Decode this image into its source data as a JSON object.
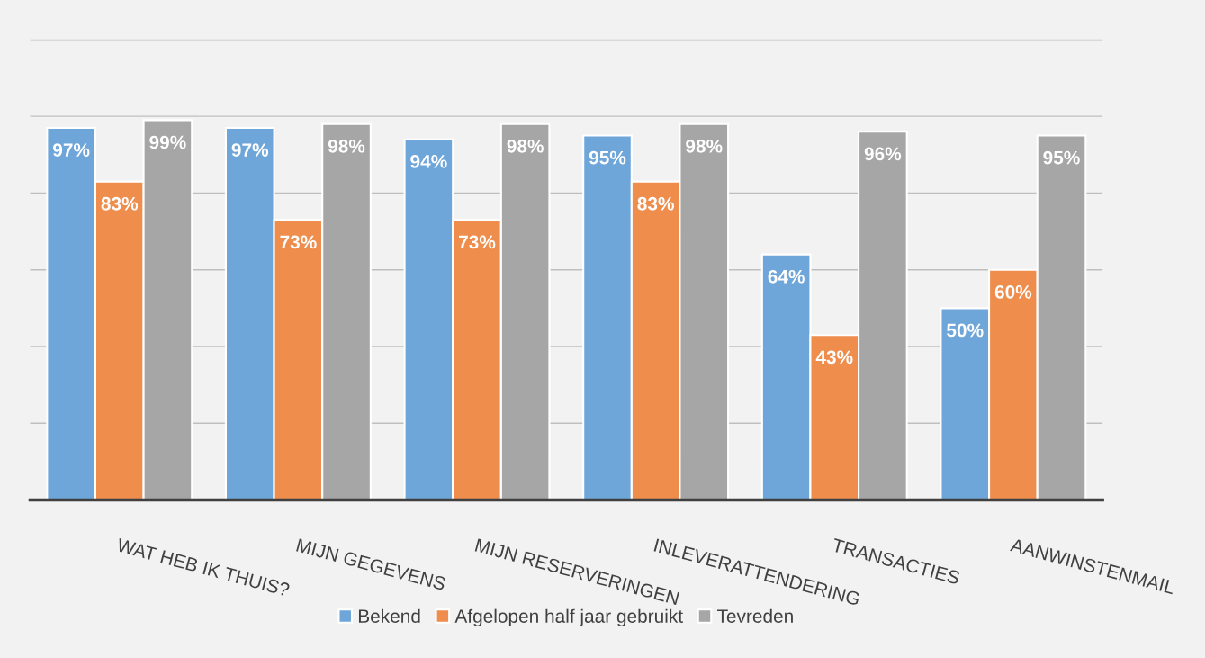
{
  "chart_data": {
    "type": "bar",
    "categories": [
      "WAT HEB IK THUIS?",
      "MIJN GEGEVENS",
      "MIJN RESERVERINGEN",
      "INLEVERATTENDERING",
      "TRANSACTIES",
      "AANWINSTENMAIL"
    ],
    "series": [
      {
        "name": "Bekend",
        "color": "#6fa6da",
        "values": [
          97,
          97,
          94,
          95,
          64,
          50
        ],
        "value_labels": [
          "97%",
          "97%",
          "94%",
          "95%",
          "64%",
          "50%"
        ]
      },
      {
        "name": "Afgelopen half jaar gebruikt",
        "color": "#ee8d4c",
        "values": [
          83,
          73,
          73,
          83,
          43,
          60
        ],
        "value_labels": [
          "83%",
          "73%",
          "73%",
          "83%",
          "43%",
          "60%"
        ]
      },
      {
        "name": "Tevreden",
        "color": "#a6a6a6",
        "values": [
          99,
          98,
          98,
          98,
          96,
          95
        ],
        "value_labels": [
          "99%",
          "98%",
          "98%",
          "98%",
          "96%",
          "95%"
        ]
      }
    ],
    "ylim": [
      0,
      120
    ],
    "yticks": [
      {
        "value": 0,
        "label": null
      },
      {
        "value": 20,
        "label": null
      },
      {
        "value": 40,
        "label": null
      },
      {
        "value": 60,
        "label": null
      },
      {
        "value": 80,
        "label": null
      },
      {
        "value": 100,
        "label": null
      },
      {
        "value": 120,
        "label": null
      }
    ],
    "tick_labels": "x",
    "grid": "y",
    "legend": "bottom"
  }
}
